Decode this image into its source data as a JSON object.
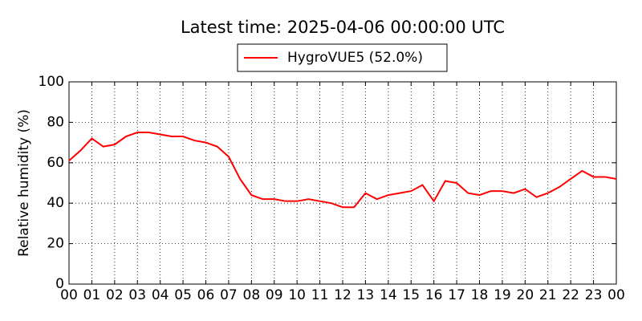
{
  "chart_data": {
    "type": "line",
    "title": "Latest time: 2025-04-06 00:00:00 UTC",
    "ylabel": "Relative humidity (%)",
    "x": [
      0,
      0.5,
      1,
      1.5,
      2,
      2.5,
      3,
      3.5,
      4,
      4.5,
      5,
      5.5,
      6,
      6.5,
      7,
      7.5,
      8,
      8.5,
      9,
      9.5,
      10,
      10.5,
      11,
      11.5,
      12,
      12.5,
      13,
      13.5,
      14,
      14.5,
      15,
      15.5,
      16,
      16.5,
      17,
      17.5,
      18,
      18.5,
      19,
      19.5,
      20,
      20.5,
      21,
      21.5,
      22,
      22.5,
      23,
      23.5,
      24
    ],
    "series": [
      {
        "name": "HygroVUE5 (52.0%)",
        "color": "#ff0000",
        "values": [
          61,
          66,
          72,
          68,
          69,
          73,
          75,
          75,
          74,
          73,
          73,
          71,
          70,
          68,
          63,
          52,
          44,
          42,
          42,
          41,
          41,
          42,
          41,
          40,
          38,
          38,
          45,
          42,
          44,
          45,
          46,
          49,
          41,
          51,
          50,
          45,
          44,
          46,
          46,
          45,
          47,
          43,
          45,
          48,
          52,
          56,
          53,
          53,
          52
        ]
      }
    ],
    "xlim": [
      0,
      24
    ],
    "xticks": [
      {
        "value": 0,
        "label": "00"
      },
      {
        "value": 1,
        "label": "01"
      },
      {
        "value": 2,
        "label": "02"
      },
      {
        "value": 3,
        "label": "03"
      },
      {
        "value": 4,
        "label": "04"
      },
      {
        "value": 5,
        "label": "05"
      },
      {
        "value": 6,
        "label": "06"
      },
      {
        "value": 7,
        "label": "07"
      },
      {
        "value": 8,
        "label": "08"
      },
      {
        "value": 9,
        "label": "09"
      },
      {
        "value": 10,
        "label": "10"
      },
      {
        "value": 11,
        "label": "11"
      },
      {
        "value": 12,
        "label": "12"
      },
      {
        "value": 13,
        "label": "13"
      },
      {
        "value": 14,
        "label": "14"
      },
      {
        "value": 15,
        "label": "15"
      },
      {
        "value": 16,
        "label": "16"
      },
      {
        "value": 17,
        "label": "17"
      },
      {
        "value": 18,
        "label": "18"
      },
      {
        "value": 19,
        "label": "19"
      },
      {
        "value": 20,
        "label": "20"
      },
      {
        "value": 21,
        "label": "21"
      },
      {
        "value": 22,
        "label": "22"
      },
      {
        "value": 23,
        "label": "23"
      },
      {
        "value": 24,
        "label": "00"
      }
    ],
    "ylim": [
      0,
      100
    ],
    "yticks": [
      0,
      20,
      40,
      60,
      80,
      100
    ],
    "grid": true
  }
}
